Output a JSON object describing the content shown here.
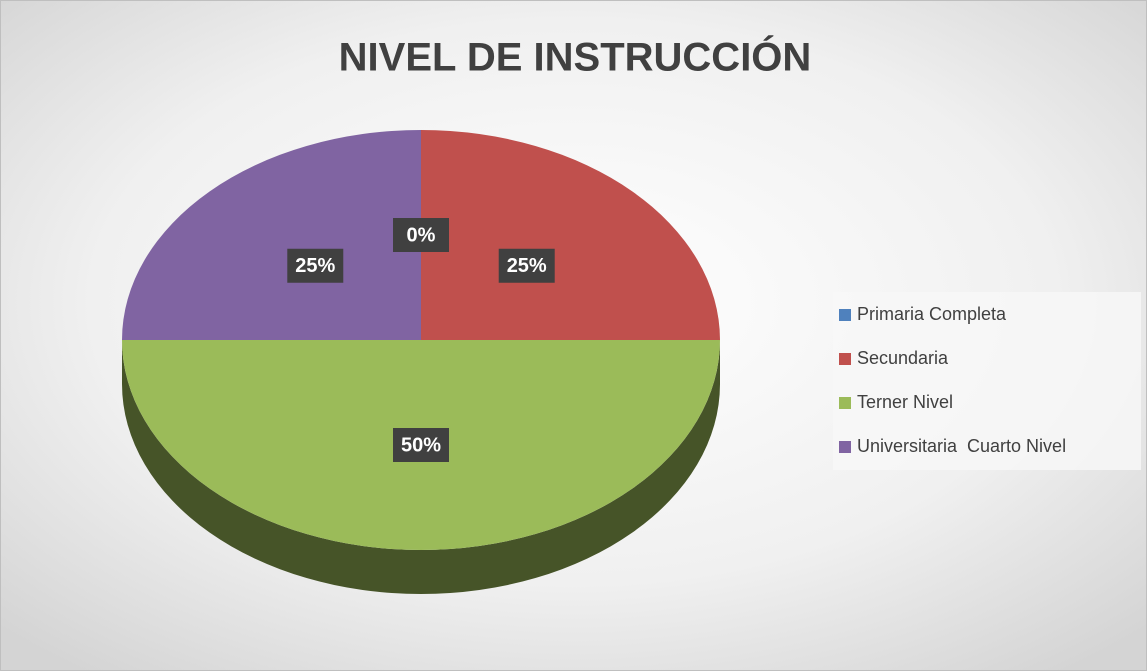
{
  "chart_data": {
    "type": "pie",
    "title": "NIVEL DE INSTRUCCIÓN",
    "categories": [
      "Primaria Completa",
      "Secundaria",
      "Terner Nivel",
      "Universitaria  Cuarto Nivel"
    ],
    "values": [
      0,
      25,
      50,
      25
    ],
    "value_labels": [
      "0%",
      "25%",
      "50%",
      "25%"
    ],
    "colors": [
      "#4f81bd",
      "#c0504d",
      "#9bbb59",
      "#8064a2"
    ],
    "legend": "right"
  }
}
